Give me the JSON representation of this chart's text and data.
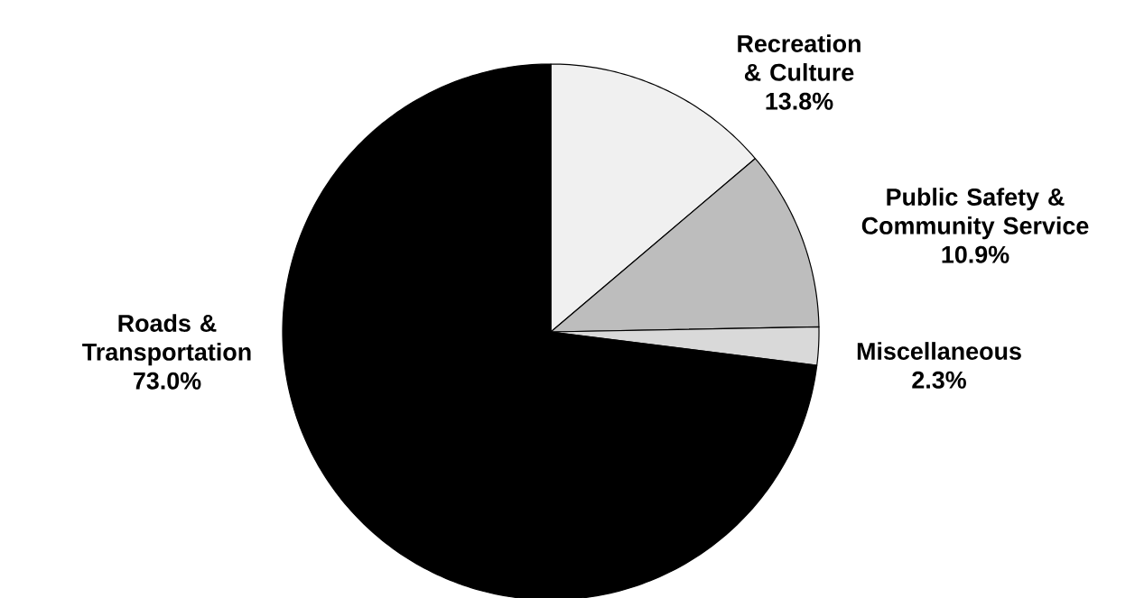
{
  "chart_data": {
    "type": "pie",
    "categories": [
      "Recreation & Culture",
      "Public Safety & Community Service",
      "Miscellaneous",
      "Roads & Transportation"
    ],
    "values": [
      13.8,
      10.9,
      2.3,
      73.0
    ],
    "value_labels": [
      "13.8%",
      "10.9%",
      "2.3%",
      "73.0%"
    ],
    "colors": [
      "#f0f0f0",
      "#bdbdbd",
      "#d9d9d9",
      "#000000"
    ]
  }
}
